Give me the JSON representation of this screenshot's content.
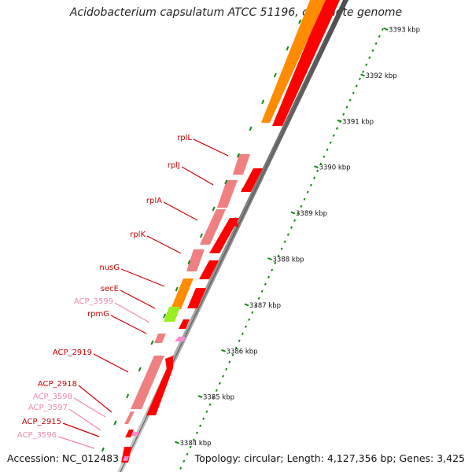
{
  "title": "Acidobacterium capsulatum ATCC 51196, complete genome",
  "footer": {
    "accession": "Accession: NC_012483",
    "summary": "Topology: circular; Length: 4,127,356 bp; Genes: 3,425"
  },
  "colors": {
    "gene_red": "#ff0000",
    "gene_pink": "#f08080",
    "gene_orange": "#ff8c00",
    "gene_lime": "#99ee22",
    "label_red": "#cc0000",
    "label_pink": "#ee88aa",
    "tick_green": "#118811",
    "backbone": "#808080"
  },
  "scale": {
    "unit": "kbp",
    "ticks": [
      {
        "kbp": 3393,
        "label": "3393 kbp"
      },
      {
        "kbp": 3392,
        "label": "3392 kbp"
      },
      {
        "kbp": 3391,
        "label": "3391 kbp"
      },
      {
        "kbp": 3390,
        "label": "3390 kbp"
      },
      {
        "kbp": 3389,
        "label": "3389 kbp"
      },
      {
        "kbp": 3388,
        "label": "3388 kbp"
      },
      {
        "kbp": 3387,
        "label": "3387 kbp"
      },
      {
        "kbp": 3386,
        "label": "3386 kbp"
      },
      {
        "kbp": 3385,
        "label": "3385 kbp"
      },
      {
        "kbp": 3384,
        "label": "3384 kbp"
      }
    ]
  },
  "gene_labels": [
    {
      "text": "rplL",
      "kind": "red"
    },
    {
      "text": "rplJ",
      "kind": "red"
    },
    {
      "text": "rplA",
      "kind": "red"
    },
    {
      "text": "rplK",
      "kind": "red"
    },
    {
      "text": "nusG",
      "kind": "red"
    },
    {
      "text": "secE",
      "kind": "red"
    },
    {
      "text": "ACP_3599",
      "kind": "pink"
    },
    {
      "text": "rpmG",
      "kind": "red"
    },
    {
      "text": "ACP_2919",
      "kind": "red"
    },
    {
      "text": "ACP_2918",
      "kind": "red"
    },
    {
      "text": "ACP_3598",
      "kind": "pink"
    },
    {
      "text": "ACP_3597",
      "kind": "pink"
    },
    {
      "text": "ACP_2915",
      "kind": "red"
    },
    {
      "text": "ACP_3596",
      "kind": "pink"
    }
  ]
}
